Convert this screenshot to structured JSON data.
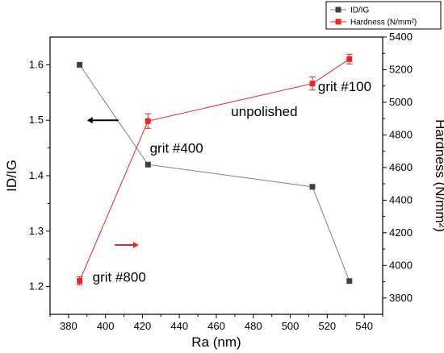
{
  "chart_data": {
    "type": "line",
    "x": [
      386,
      423,
      512,
      532
    ],
    "xlabel": "Ra (nm)",
    "xlim": [
      370,
      550
    ],
    "xticks": [
      380,
      400,
      420,
      440,
      460,
      480,
      500,
      520,
      540
    ],
    "ylabel_left": "ID/IG",
    "ylim_left": [
      1.15,
      1.65
    ],
    "yticks_left": [
      "1.2",
      "1.3",
      "1.4",
      "1.5",
      "1.6"
    ],
    "ylabel_right": "Hardness (N/mm²)",
    "ylim_right": [
      3700,
      5400
    ],
    "yticks_right": [
      3800,
      4000,
      4200,
      4400,
      4600,
      4800,
      5000,
      5200,
      5400
    ],
    "series": [
      {
        "name": "ID/IG",
        "axis": "left",
        "color": "#404040",
        "line_color": "#7f7f7f",
        "values": [
          1.6,
          1.42,
          1.38,
          1.21
        ]
      },
      {
        "name": "Hardness (N/mm²)",
        "axis": "right",
        "color": "#e8262a",
        "line_color": "#e8262a",
        "values": [
          3905,
          4885,
          5115,
          5265
        ],
        "errors": [
          25,
          45,
          40,
          30
        ]
      }
    ],
    "annotations": [
      {
        "text": "grit #800",
        "x": 393,
        "y_right": 3900
      },
      {
        "text": "grit #400",
        "x": 424,
        "y_right": 4690
      },
      {
        "text": "grit #100",
        "x": 515,
        "y_right": 5070
      },
      {
        "text": "unpolished",
        "x": 468,
        "y_right": 4915
      }
    ],
    "arrows": [
      {
        "direction": "left",
        "color": "#000000",
        "x_from": 407,
        "x_to": 390,
        "y_left": 1.5
      },
      {
        "direction": "right",
        "color": "#e8262a",
        "x_from": 405,
        "x_to": 418,
        "y_left": 1.275
      }
    ],
    "legend": "top-right"
  }
}
